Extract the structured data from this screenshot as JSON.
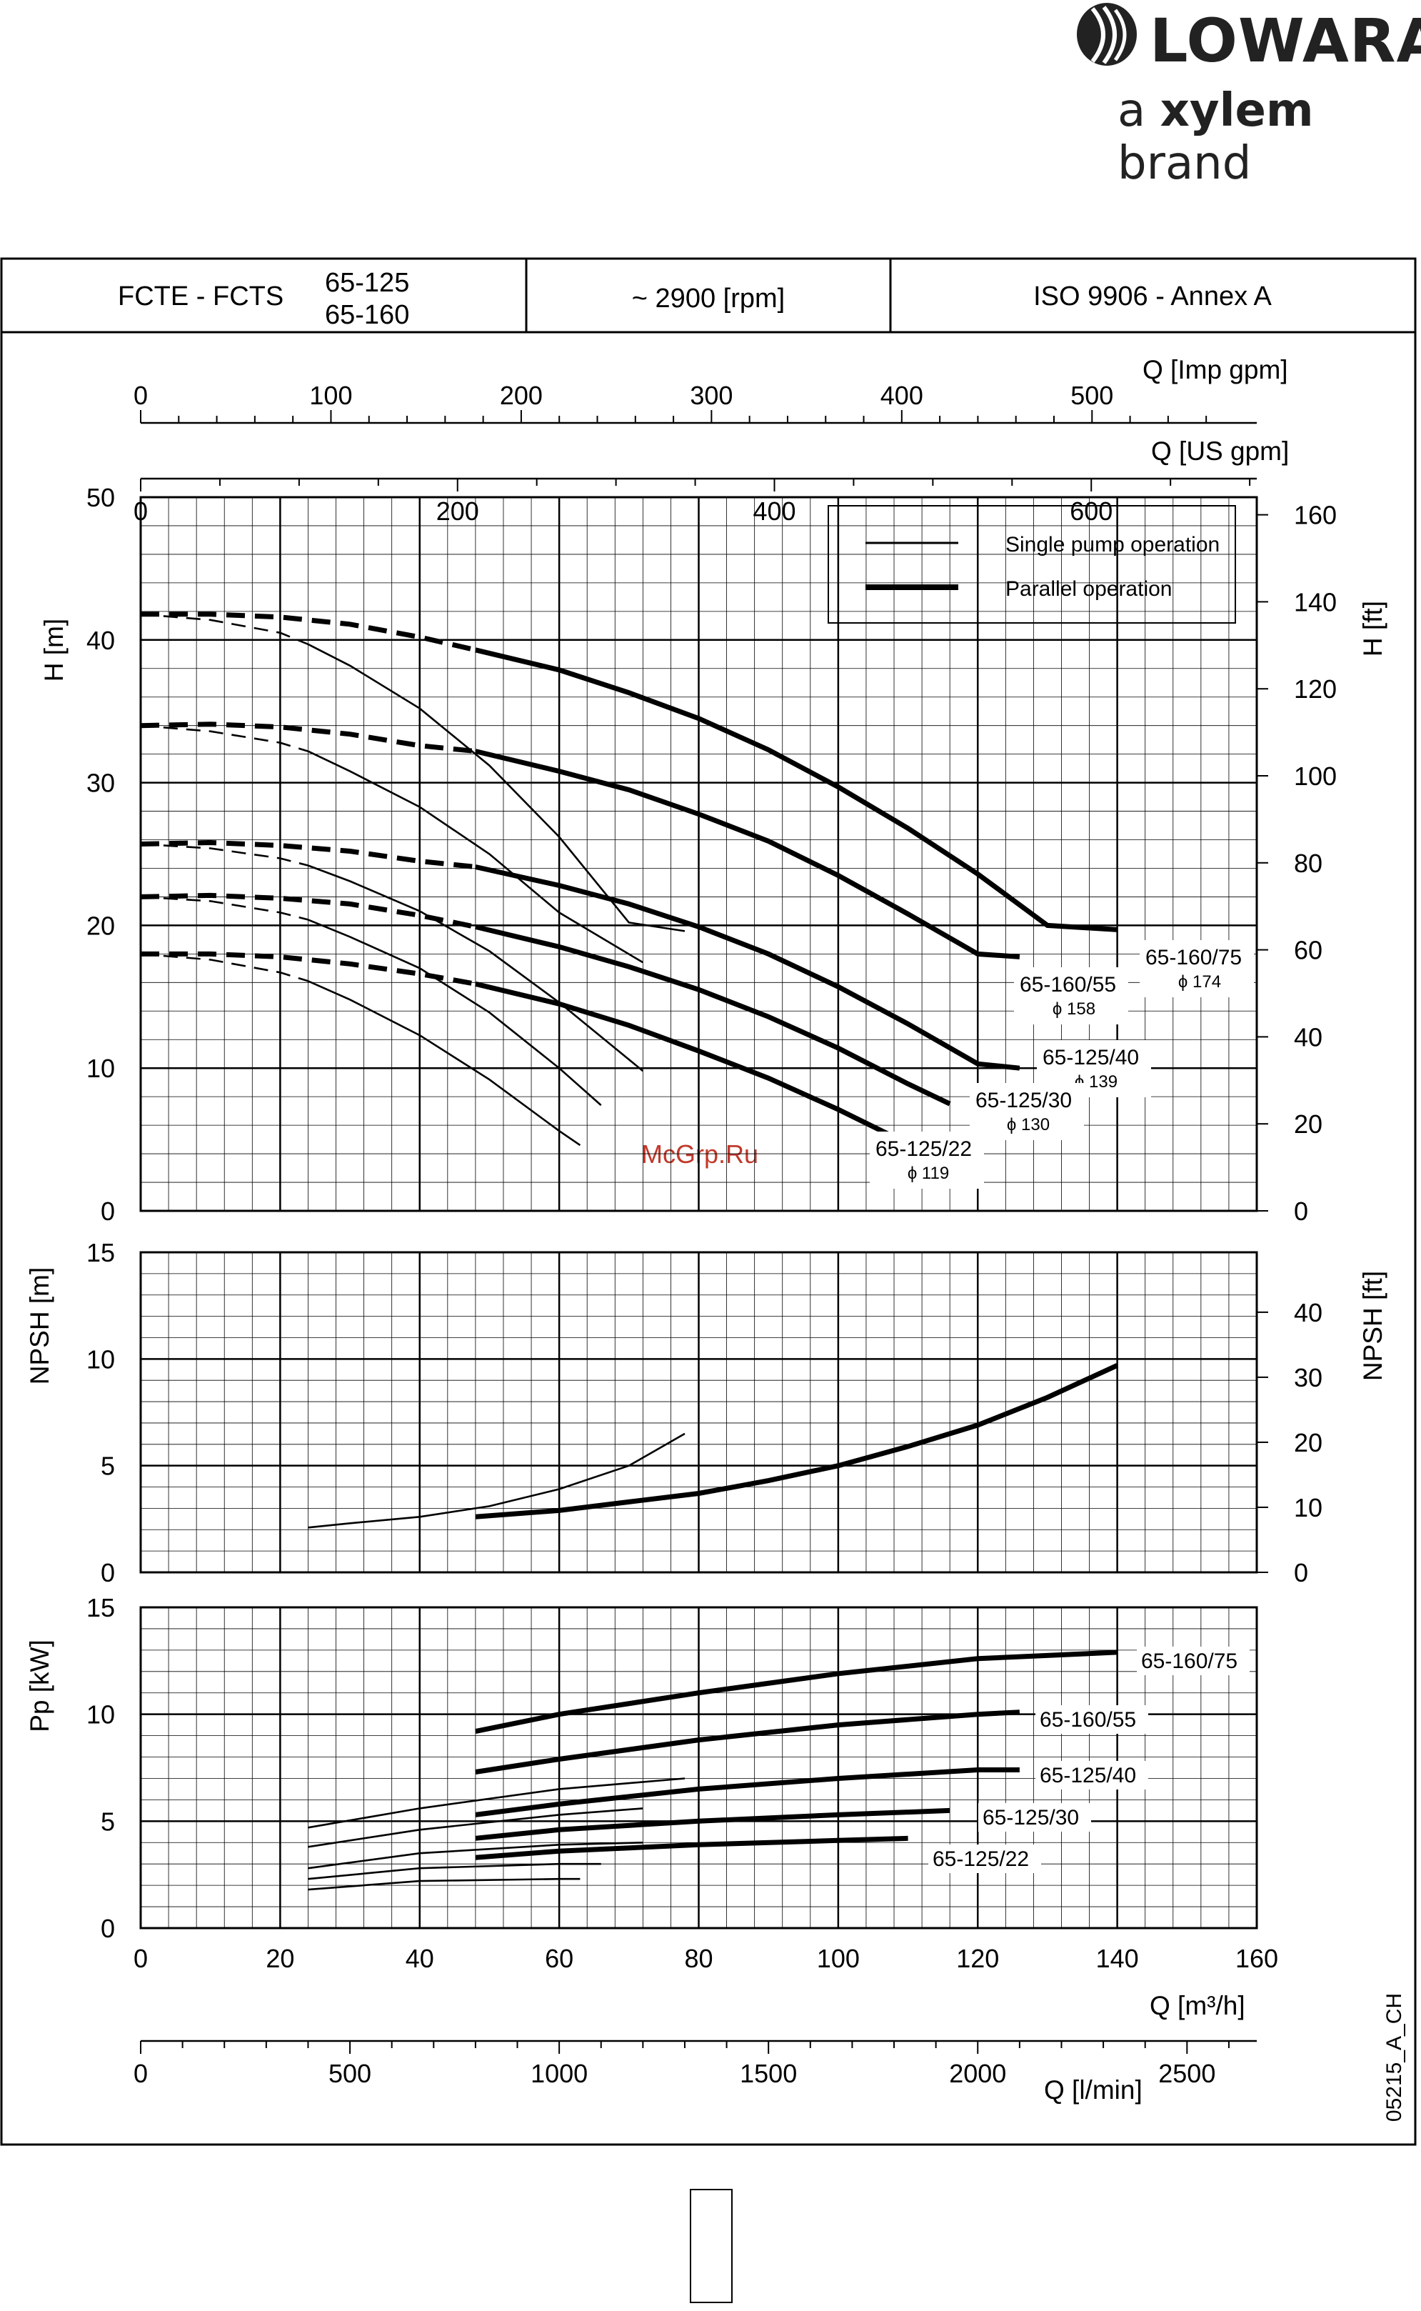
{
  "brand": {
    "name": "LOWARA",
    "tagline_prefix": "a",
    "tagline_brand": "xylem",
    "tagline_suffix": "brand"
  },
  "header": {
    "series": "FCTE - FCTS",
    "models_line1": "65-125",
    "models_line2": "65-160",
    "speed": "~ 2900 [rpm]",
    "standard": "ISO 9906 - Annex A"
  },
  "watermark": "McGrp.Ru",
  "figure_code": "05215_A_CH",
  "legend": {
    "single": "Single pump operation",
    "parallel": "Parallel operation"
  },
  "axes": {
    "imp_gpm": {
      "label": "Q [Imp gpm]",
      "ticks": [
        "0",
        "100",
        "200",
        "300",
        "400",
        "500"
      ]
    },
    "us_gpm": {
      "label": "Q [US gpm]",
      "ticks": [
        "0",
        "200",
        "400",
        "600"
      ]
    },
    "q_m3h": {
      "label": "Q [m³/h]",
      "ticks": [
        "0",
        "20",
        "40",
        "60",
        "80",
        "100",
        "120",
        "140",
        "160"
      ]
    },
    "q_lmin": {
      "label": "Q [l/min]",
      "ticks": [
        "0",
        "500",
        "1000",
        "1500",
        "2000",
        "2500"
      ]
    },
    "h_m": {
      "label": "H [m]",
      "ticks": [
        "0",
        "10",
        "20",
        "30",
        "40",
        "50"
      ]
    },
    "h_ft": {
      "label": "H [ft]",
      "ticks": [
        "0",
        "20",
        "40",
        "60",
        "80",
        "100",
        "120",
        "140",
        "160"
      ]
    },
    "npsh_m": {
      "label": "NPSH [m]",
      "ticks": [
        "0",
        "5",
        "10",
        "15"
      ]
    },
    "npsh_ft": {
      "label": "NPSH [ft]",
      "ticks": [
        "0",
        "10",
        "20",
        "30",
        "40"
      ]
    },
    "p_kw": {
      "label": "Pp [kW]",
      "ticks": [
        "0",
        "5",
        "10",
        "15"
      ]
    }
  },
  "chart_data": [
    {
      "type": "line",
      "panel": "head",
      "xlabel": "Q [m³/h]",
      "ylabel": "H [m]",
      "xlim": [
        0,
        160
      ],
      "ylim": [
        0,
        50
      ],
      "grid": true,
      "legend_position": "top-right",
      "series": [
        {
          "name": "65-160/75",
          "impeller": "ϕ 174",
          "mode": "parallel",
          "x": [
            0,
            10,
            20,
            30,
            40,
            48,
            60,
            70,
            80,
            90,
            100,
            110,
            120,
            130,
            140
          ],
          "y": [
            41.8,
            41.8,
            41.6,
            41.1,
            40.2,
            39.3,
            37.9,
            36.3,
            34.5,
            32.3,
            29.7,
            26.8,
            23.6,
            20.0,
            19.7
          ]
        },
        {
          "name": "65-160/55",
          "impeller": "ϕ 158",
          "mode": "parallel",
          "x": [
            0,
            10,
            20,
            30,
            40,
            48,
            60,
            70,
            80,
            90,
            100,
            110,
            120,
            126
          ],
          "y": [
            34.0,
            34.1,
            33.9,
            33.4,
            32.6,
            32.2,
            30.8,
            29.5,
            27.8,
            25.9,
            23.5,
            20.8,
            18.0,
            17.8
          ]
        },
        {
          "name": "65-125/40",
          "impeller": "ϕ 139",
          "mode": "parallel",
          "x": [
            0,
            10,
            20,
            30,
            40,
            48,
            60,
            70,
            80,
            90,
            100,
            110,
            120,
            126
          ],
          "y": [
            25.7,
            25.8,
            25.6,
            25.2,
            24.5,
            24.1,
            22.8,
            21.5,
            19.9,
            18.0,
            15.7,
            13.1,
            10.3,
            10.0
          ]
        },
        {
          "name": "65-125/30",
          "impeller": "ϕ 130",
          "mode": "parallel",
          "x": [
            0,
            10,
            20,
            30,
            40,
            48,
            60,
            70,
            80,
            90,
            100,
            110,
            116
          ],
          "y": [
            22.0,
            22.1,
            21.9,
            21.5,
            20.7,
            19.9,
            18.5,
            17.1,
            15.5,
            13.6,
            11.4,
            8.9,
            7.5
          ]
        },
        {
          "name": "65-125/22",
          "impeller": "ϕ 119",
          "mode": "parallel",
          "x": [
            0,
            10,
            20,
            30,
            40,
            48,
            60,
            70,
            80,
            90,
            100,
            110
          ],
          "y": [
            18.0,
            18.0,
            17.8,
            17.3,
            16.6,
            15.9,
            14.5,
            13.0,
            11.2,
            9.3,
            7.1,
            4.7
          ]
        },
        {
          "name": "65-160/75",
          "mode": "single",
          "x": [
            0,
            10,
            20,
            24,
            30,
            40,
            50,
            60,
            70,
            78
          ],
          "y": [
            41.8,
            41.4,
            40.5,
            39.7,
            38.2,
            35.2,
            31.2,
            26.2,
            20.2,
            19.6
          ]
        },
        {
          "name": "65-160/55",
          "mode": "single",
          "x": [
            0,
            10,
            20,
            24,
            30,
            40,
            50,
            60,
            72
          ],
          "y": [
            34.0,
            33.6,
            32.8,
            32.2,
            30.8,
            28.3,
            25.0,
            20.9,
            17.4
          ]
        },
        {
          "name": "65-125/40",
          "mode": "single",
          "x": [
            0,
            10,
            20,
            24,
            30,
            40,
            50,
            60,
            72
          ],
          "y": [
            25.7,
            25.4,
            24.7,
            24.2,
            23.1,
            21.0,
            18.2,
            14.6,
            9.8
          ]
        },
        {
          "name": "65-125/30",
          "mode": "single",
          "x": [
            0,
            10,
            20,
            24,
            30,
            40,
            50,
            60,
            66
          ],
          "y": [
            22.0,
            21.7,
            20.9,
            20.4,
            19.2,
            17.0,
            13.9,
            10.0,
            7.4
          ]
        },
        {
          "name": "65-125/22",
          "mode": "single",
          "x": [
            0,
            10,
            20,
            24,
            30,
            40,
            50,
            60,
            63
          ],
          "y": [
            18.0,
            17.6,
            16.7,
            16.1,
            14.8,
            12.3,
            9.2,
            5.6,
            4.6
          ]
        }
      ]
    },
    {
      "type": "line",
      "panel": "npsh",
      "xlabel": "Q [m³/h]",
      "ylabel": "NPSH [m]",
      "xlim": [
        0,
        160
      ],
      "ylim": [
        0,
        15
      ],
      "grid": true,
      "series": [
        {
          "mode": "single",
          "x": [
            24,
            30,
            40,
            50,
            60,
            70,
            78
          ],
          "y": [
            2.1,
            2.3,
            2.6,
            3.1,
            3.9,
            5.0,
            6.5
          ]
        },
        {
          "mode": "parallel",
          "x": [
            48,
            60,
            70,
            80,
            90,
            100,
            110,
            120,
            130,
            140
          ],
          "y": [
            2.6,
            2.9,
            3.3,
            3.7,
            4.3,
            5.0,
            5.9,
            6.9,
            8.2,
            9.7
          ]
        }
      ]
    },
    {
      "type": "line",
      "panel": "power",
      "xlabel": "Q [m³/h]",
      "ylabel": "Pp [kW]",
      "xlim": [
        0,
        160
      ],
      "ylim": [
        0,
        15
      ],
      "grid": true,
      "series": [
        {
          "name": "65-160/75",
          "mode": "parallel",
          "x": [
            48,
            60,
            80,
            100,
            120,
            140
          ],
          "y": [
            9.2,
            10.0,
            11.0,
            11.9,
            12.6,
            12.9
          ]
        },
        {
          "name": "65-160/55",
          "mode": "parallel",
          "x": [
            48,
            60,
            80,
            100,
            120,
            126
          ],
          "y": [
            7.3,
            7.9,
            8.8,
            9.5,
            10.0,
            10.1
          ]
        },
        {
          "name": "65-125/40",
          "mode": "parallel",
          "x": [
            48,
            60,
            80,
            100,
            120,
            126
          ],
          "y": [
            5.3,
            5.8,
            6.5,
            7.0,
            7.4,
            7.4
          ]
        },
        {
          "name": "65-125/30",
          "mode": "parallel",
          "x": [
            48,
            60,
            80,
            100,
            116
          ],
          "y": [
            4.2,
            4.6,
            5.0,
            5.3,
            5.5
          ]
        },
        {
          "name": "65-125/22",
          "mode": "parallel",
          "x": [
            48,
            60,
            80,
            100,
            110
          ],
          "y": [
            3.3,
            3.6,
            3.9,
            4.1,
            4.2
          ]
        },
        {
          "name": "65-160/75",
          "mode": "single",
          "x": [
            24,
            40,
            60,
            78
          ],
          "y": [
            4.7,
            5.6,
            6.5,
            7.0
          ]
        },
        {
          "name": "65-160/55",
          "mode": "single",
          "x": [
            24,
            40,
            60,
            72
          ],
          "y": [
            3.8,
            4.6,
            5.3,
            5.6
          ]
        },
        {
          "name": "65-125/40",
          "mode": "single",
          "x": [
            24,
            40,
            60,
            72
          ],
          "y": [
            2.8,
            3.5,
            3.9,
            4.0
          ]
        },
        {
          "name": "65-125/30",
          "mode": "single",
          "x": [
            24,
            40,
            60,
            66
          ],
          "y": [
            2.3,
            2.8,
            3.0,
            3.0
          ]
        },
        {
          "name": "65-125/22",
          "mode": "single",
          "x": [
            24,
            40,
            60,
            63
          ],
          "y": [
            1.8,
            2.2,
            2.3,
            2.3
          ]
        }
      ]
    }
  ],
  "curve_labels": {
    "head": [
      {
        "name": "65-160/75",
        "impeller": "ϕ 174"
      },
      {
        "name": "65-160/55",
        "impeller": "ϕ 158"
      },
      {
        "name": "65-125/40",
        "impeller": "ϕ 139"
      },
      {
        "name": "65-125/30",
        "impeller": "ϕ 130"
      },
      {
        "name": "65-125/22",
        "impeller": "ϕ 119"
      }
    ],
    "power": [
      "65-160/75",
      "65-160/55",
      "65-125/40",
      "65-125/30",
      "65-125/22"
    ]
  }
}
